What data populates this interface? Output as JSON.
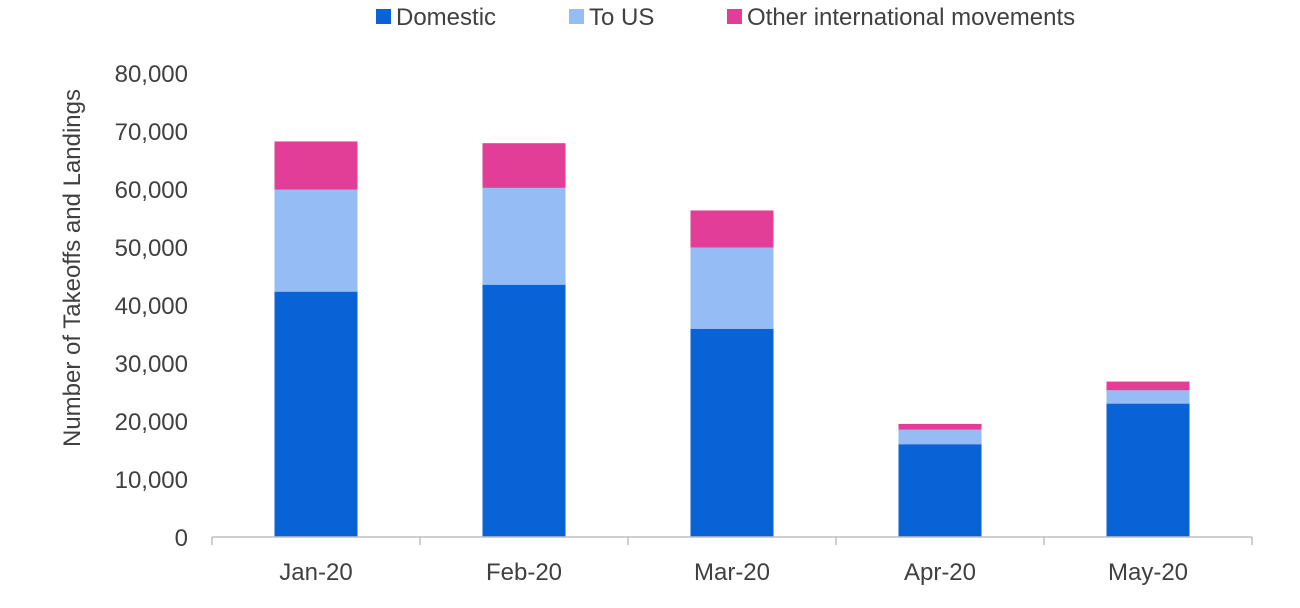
{
  "chart_data": {
    "type": "bar",
    "stacked": true,
    "title": "",
    "xlabel": "",
    "ylabel": "Number of Takeoffs and Landings",
    "ylim": [
      0,
      80000
    ],
    "yticks": [
      0,
      10000,
      20000,
      30000,
      40000,
      50000,
      60000,
      70000,
      80000
    ],
    "ytick_labels": [
      "0",
      "10,000",
      "20,000",
      "30,000",
      "40,000",
      "50,000",
      "60,000",
      "70,000",
      "80,000"
    ],
    "categories": [
      "Jan-20",
      "Feb-20",
      "Mar-20",
      "Apr-20",
      "May-20"
    ],
    "series": [
      {
        "name": "Domestic",
        "color": "#0A62D7",
        "values": [
          42300,
          43500,
          35900,
          16000,
          23000
        ]
      },
      {
        "name": "To US",
        "color": "#96BCF6",
        "values": [
          17600,
          16700,
          14000,
          2500,
          2300
        ]
      },
      {
        "name": "Other international movements",
        "color": "#E23E97",
        "values": [
          8300,
          7700,
          6400,
          1000,
          1500
        ]
      }
    ],
    "legend_position": "top",
    "grid": false
  }
}
